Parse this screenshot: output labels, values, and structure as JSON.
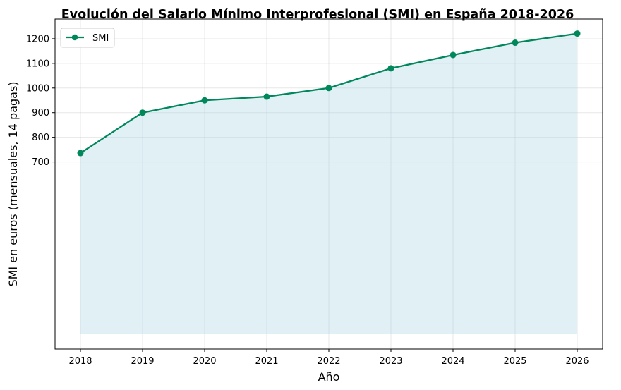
{
  "chart_data": {
    "type": "line",
    "title": "Evolución del Salario Mínimo Interprofesional (SMI) en España 2018-2026",
    "xlabel": "Año",
    "ylabel": "SMI en euros (mensuales, 14 pagas)",
    "x": [
      "2018",
      "2019",
      "2020",
      "2021",
      "2022",
      "2023",
      "2024",
      "2025",
      "2026"
    ],
    "series": [
      {
        "name": "SMI",
        "values": [
          735.9,
          900,
          950,
          965,
          1000,
          1080,
          1134,
          1184,
          1221
        ],
        "color": "#00875a",
        "fill_color": "#add8e6"
      }
    ],
    "fill_baseline": 0,
    "y_ticks": [
      700,
      800,
      900,
      1000,
      1100,
      1200
    ],
    "ylim": [
      -60,
      1280
    ],
    "grid": true,
    "legend_position": "top-left"
  }
}
